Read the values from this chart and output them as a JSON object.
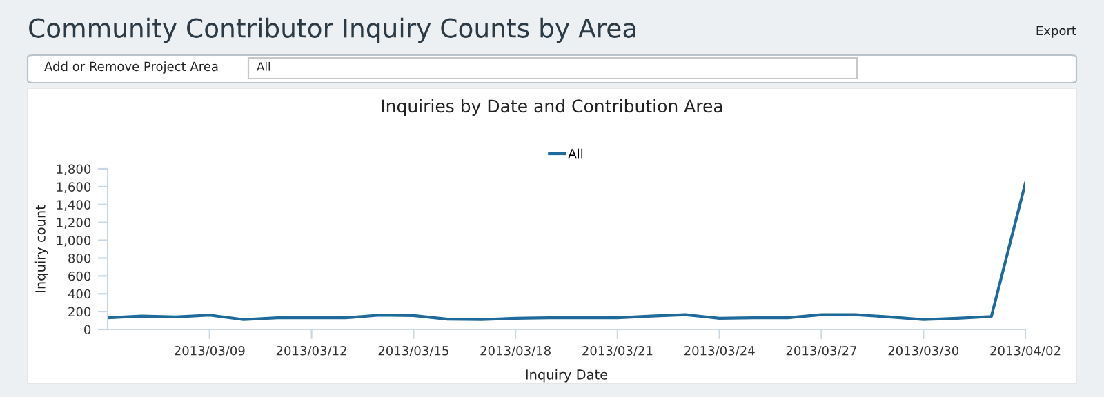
{
  "chart_data": {
    "type": "line",
    "title": "Community Contributor Inquiry Counts by Area",
    "subtitle": "Inquiries by Date and Contribution Area",
    "xlabel": "Inquiry Date",
    "ylabel": "Inquiry count",
    "annotations": [
      "Export",
      "Add or Remove Project Area",
      "All"
    ],
    "x": [
      "2013-03-06",
      "2013-03-07",
      "2013-03-08",
      "2013-03-09",
      "2013-03-10",
      "2013-03-11",
      "2013-03-12",
      "2013-03-13",
      "2013-03-14",
      "2013-03-15",
      "2013-03-16",
      "2013-03-17",
      "2013-03-18",
      "2013-03-19",
      "2013-03-20",
      "2013-03-21",
      "2013-03-22",
      "2013-03-23",
      "2013-03-24",
      "2013-03-25",
      "2013-03-26",
      "2013-03-27",
      "2013-03-28",
      "2013-03-29",
      "2013-03-30",
      "2013-03-31",
      "2013-04-01",
      "2013-04-02"
    ],
    "series": [
      {
        "name": "All",
        "color": "#1f6a9a",
        "values": [
          130,
          150,
          140,
          160,
          110,
          130,
          130,
          130,
          160,
          155,
          115,
          110,
          125,
          130,
          130,
          130,
          150,
          165,
          125,
          130,
          130,
          165,
          165,
          140,
          110,
          125,
          145,
          1640
        ]
      }
    ],
    "xlim": [
      "2013-03-06",
      "2013-04-02"
    ],
    "xticks": [
      {
        "value": "2013-03-09",
        "label": "2013/03/09"
      },
      {
        "value": "2013-03-12",
        "label": "2013/03/12"
      },
      {
        "value": "2013-03-15",
        "label": "2013/03/15"
      },
      {
        "value": "2013-03-18",
        "label": "2013/03/18"
      },
      {
        "value": "2013-03-21",
        "label": "2013/03/21"
      },
      {
        "value": "2013-03-24",
        "label": "2013/03/24"
      },
      {
        "value": "2013-03-27",
        "label": "2013/03/27"
      },
      {
        "value": "2013-03-30",
        "label": "2013/03/30"
      },
      {
        "value": "2013-04-02",
        "label": "2013/04/02"
      }
    ],
    "ylim": [
      0,
      1800
    ],
    "yticks": [
      0,
      {
        "value": 200,
        "label": "200"
      },
      {
        "value": 400,
        "label": "400"
      },
      {
        "value": 600,
        "label": "600"
      },
      {
        "value": 800,
        "label": "800"
      },
      {
        "value": 1000,
        "label": "1,000"
      },
      {
        "value": 1200,
        "label": "1,200"
      },
      {
        "value": 1400,
        "label": "1,400"
      },
      {
        "value": 1600,
        "label": "1,600"
      },
      {
        "value": 1800,
        "label": "1,800"
      }
    ],
    "grid": false,
    "legend": "top",
    "marker": "none",
    "line_style": "solid"
  }
}
